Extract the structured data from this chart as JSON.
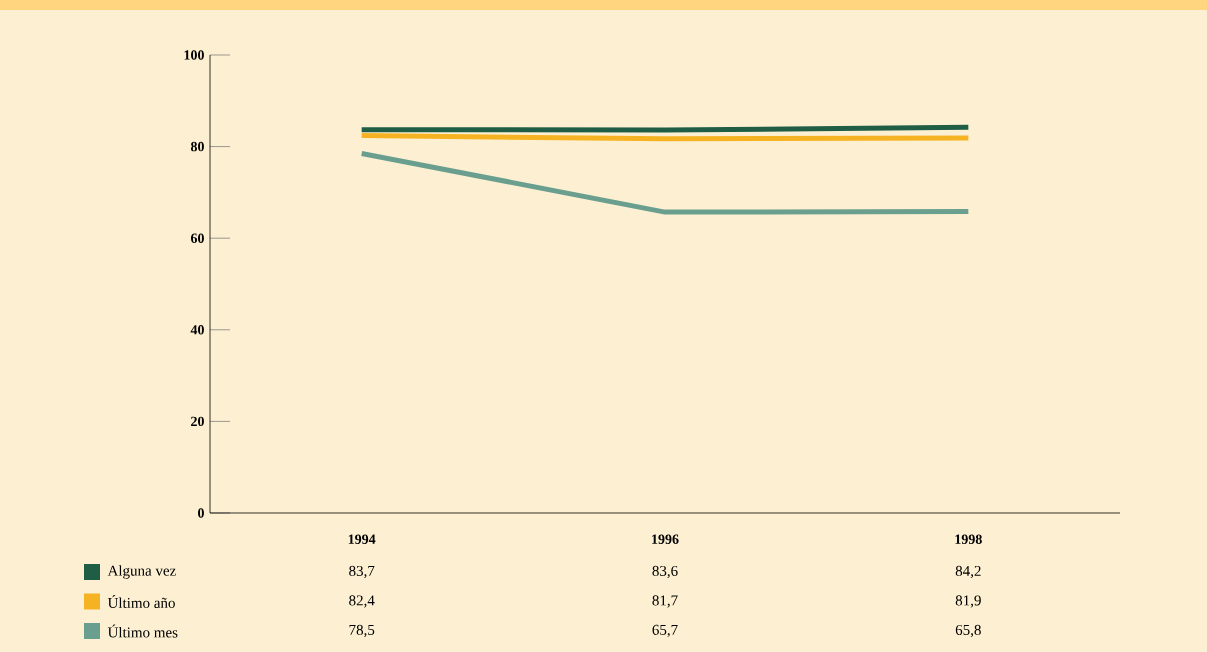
{
  "chart_data": {
    "type": "line",
    "categories": [
      "1994",
      "1996",
      "1998"
    ],
    "series": [
      {
        "name": "Alguna vez",
        "color": "#1f5e45",
        "values": [
          83.7,
          83.6,
          84.2
        ],
        "value_labels": [
          "83,7",
          "83,6",
          "84,2"
        ]
      },
      {
        "name": "Último año",
        "color": "#f5b324",
        "values": [
          82.4,
          81.7,
          81.9
        ],
        "value_labels": [
          "82,4",
          "81,7",
          "81,9"
        ]
      },
      {
        "name": "Último mes",
        "color": "#6a9f8f",
        "values": [
          78.5,
          65.7,
          65.8
        ],
        "value_labels": [
          "78,5",
          "65,7",
          "65,8"
        ]
      }
    ],
    "ylim": [
      0,
      100
    ],
    "yticks": [
      0,
      20,
      40,
      60,
      80,
      100
    ],
    "legend": "bottom",
    "grid": false
  }
}
